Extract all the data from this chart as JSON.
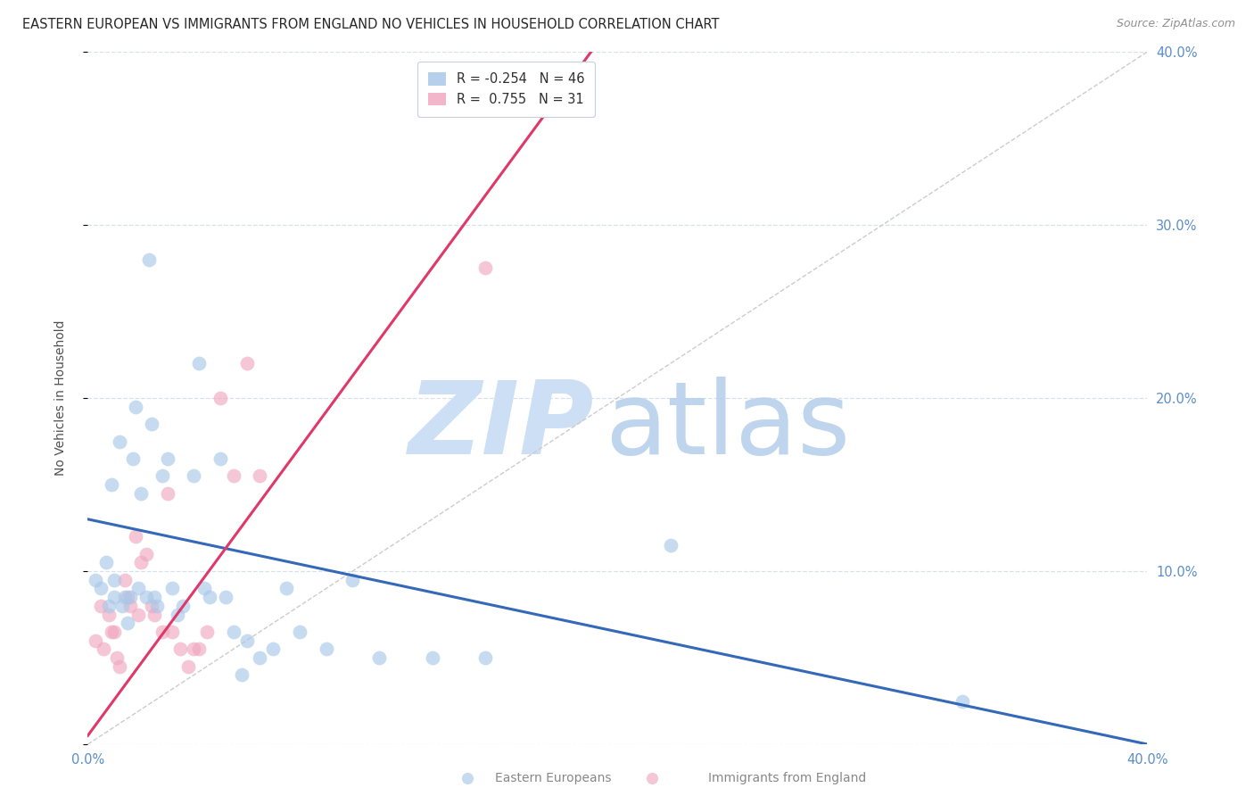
{
  "title": "EASTERN EUROPEAN VS IMMIGRANTS FROM ENGLAND NO VEHICLES IN HOUSEHOLD CORRELATION CHART",
  "source": "Source: ZipAtlas.com",
  "ylabel": "No Vehicles in Household",
  "xlim": [
    0.0,
    0.4
  ],
  "ylim": [
    0.0,
    0.4
  ],
  "r_eastern": -0.254,
  "n_eastern": 46,
  "r_england": 0.755,
  "n_england": 31,
  "eastern_color": "#a8c8e8",
  "england_color": "#f0a8c0",
  "trendline_eastern_color": "#3468b8",
  "trendline_england_color": "#e03868",
  "trendline_diag_color": "#cccccc",
  "watermark_zip_color": "#ccdff5",
  "watermark_atlas_color": "#b8d0ec",
  "legend_eastern_label": "Eastern Europeans",
  "legend_england_label": "Immigrants from England",
  "eastern_x": [
    0.003,
    0.005,
    0.007,
    0.008,
    0.009,
    0.01,
    0.01,
    0.012,
    0.013,
    0.014,
    0.015,
    0.016,
    0.017,
    0.018,
    0.019,
    0.02,
    0.022,
    0.023,
    0.024,
    0.025,
    0.026,
    0.028,
    0.03,
    0.032,
    0.034,
    0.036,
    0.04,
    0.042,
    0.044,
    0.046,
    0.05,
    0.052,
    0.055,
    0.058,
    0.06,
    0.065,
    0.07,
    0.075,
    0.08,
    0.09,
    0.1,
    0.11,
    0.13,
    0.15,
    0.22,
    0.33
  ],
  "eastern_y": [
    0.095,
    0.09,
    0.105,
    0.08,
    0.15,
    0.095,
    0.085,
    0.175,
    0.08,
    0.085,
    0.07,
    0.085,
    0.165,
    0.195,
    0.09,
    0.145,
    0.085,
    0.28,
    0.185,
    0.085,
    0.08,
    0.155,
    0.165,
    0.09,
    0.075,
    0.08,
    0.155,
    0.22,
    0.09,
    0.085,
    0.165,
    0.085,
    0.065,
    0.04,
    0.06,
    0.05,
    0.055,
    0.09,
    0.065,
    0.055,
    0.095,
    0.05,
    0.05,
    0.05,
    0.115,
    0.025
  ],
  "england_x": [
    0.003,
    0.005,
    0.006,
    0.008,
    0.009,
    0.01,
    0.011,
    0.012,
    0.014,
    0.015,
    0.016,
    0.018,
    0.019,
    0.02,
    0.022,
    0.024,
    0.025,
    0.028,
    0.03,
    0.032,
    0.035,
    0.038,
    0.04,
    0.042,
    0.045,
    0.05,
    0.055,
    0.06,
    0.065,
    0.15,
    0.165
  ],
  "england_y": [
    0.06,
    0.08,
    0.055,
    0.075,
    0.065,
    0.065,
    0.05,
    0.045,
    0.095,
    0.085,
    0.08,
    0.12,
    0.075,
    0.105,
    0.11,
    0.08,
    0.075,
    0.065,
    0.145,
    0.065,
    0.055,
    0.045,
    0.055,
    0.055,
    0.065,
    0.2,
    0.155,
    0.22,
    0.155,
    0.275,
    0.38
  ],
  "trendline_eastern_x0": 0.0,
  "trendline_eastern_y0": 0.13,
  "trendline_eastern_x1": 0.4,
  "trendline_eastern_y1": 0.0,
  "trendline_england_x0": 0.0,
  "trendline_england_y0": 0.005,
  "trendline_england_x1": 0.19,
  "trendline_england_y1": 0.4,
  "marker_size": 130,
  "alpha": 0.65,
  "background_color": "#ffffff",
  "grid_color": "#d8e0ec",
  "axis_tick_color": "#5b8ec8",
  "title_fontsize": 10.5,
  "source_fontsize": 9,
  "ylabel_fontsize": 10,
  "legend_fontsize": 10.5,
  "tick_fontsize": 10.5
}
